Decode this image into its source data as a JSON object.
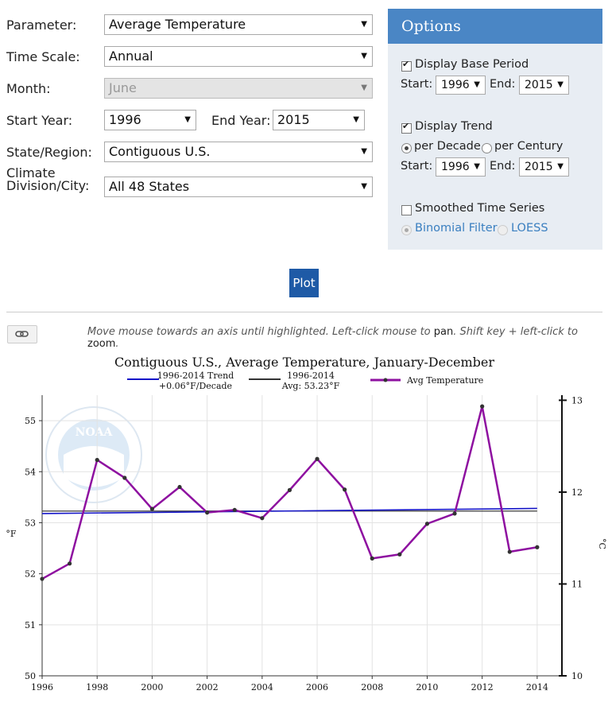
{
  "form": {
    "parameter_label": "Parameter:",
    "parameter_value": "Average Temperature",
    "timescale_label": "Time Scale:",
    "timescale_value": "Annual",
    "month_label": "Month:",
    "month_value": "June",
    "start_year_label": "Start Year:",
    "start_year_value": "1996",
    "end_year_label": "End Year:",
    "end_year_value": "2015",
    "state_label": "State/Region:",
    "state_value": "Contiguous U.S.",
    "division_label_1": "Climate",
    "division_label_2": "Division/City:",
    "division_value": "All 48 States",
    "arrow_icon": "▼"
  },
  "options": {
    "title": "Options",
    "base_period_label": "Display Base Period",
    "start_label": "Start:",
    "end_label": "End:",
    "base_start": "1996",
    "base_end": "2015",
    "trend_label": "Display Trend",
    "per_decade": "per Decade",
    "per_century": "per Century",
    "trend_start": "1996",
    "trend_end": "2015",
    "smoothed_label": "Smoothed Time Series",
    "binomial": "Binomial Filter",
    "loess": "LOESS"
  },
  "plot_button": "Plot",
  "hint": {
    "part1": "Move mouse towards an axis until highlighted. Left-click mouse to ",
    "pan": "pan",
    "part2": ". Shift key + left-click to ",
    "zoom": "zoom",
    "part3": "."
  },
  "colors": {
    "trend": "#1515c8",
    "avg": "#333333",
    "series": "#8e10a0",
    "options_header": "#4a86c5",
    "plot_button": "#1e5aa6"
  },
  "chart_data": {
    "type": "line",
    "title": "Contiguous U.S., Average Temperature, January-December",
    "ylabel": "°F",
    "y2label": "°C",
    "legend": [
      {
        "key": "trend",
        "line1": "1996-2014 Trend",
        "line2": "+0.06°F/Decade"
      },
      {
        "key": "avg",
        "line1": "1996-2014",
        "line2": "Avg: 53.23°F"
      },
      {
        "key": "series",
        "line1": "Avg Temperature"
      }
    ],
    "x": [
      1996,
      1997,
      1998,
      1999,
      2000,
      2001,
      2002,
      2003,
      2004,
      2005,
      2006,
      2007,
      2008,
      2009,
      2010,
      2011,
      2012,
      2013,
      2014
    ],
    "series": [
      {
        "name": "Avg Temperature",
        "values": [
          51.9,
          52.2,
          54.23,
          53.88,
          53.27,
          53.7,
          53.2,
          53.25,
          53.09,
          53.64,
          54.25,
          53.65,
          52.3,
          52.38,
          52.98,
          53.18,
          55.28,
          52.43,
          52.52
        ]
      }
    ],
    "trend": {
      "start": 53.18,
      "end": 53.28,
      "x_range": [
        1996,
        2014
      ]
    },
    "average": 53.23,
    "xlim": [
      1996,
      2014.9
    ],
    "xticks": [
      "1996",
      "1998",
      "2000",
      "2002",
      "2004",
      "2006",
      "2008",
      "2010",
      "2012",
      "2014"
    ],
    "ylim": [
      50,
      55.5
    ],
    "yticks": [
      "50",
      "51",
      "52",
      "53",
      "54",
      "55"
    ],
    "y2ticks": [
      "10",
      "11",
      "12",
      "13"
    ],
    "grid": true,
    "legend_position": "top"
  }
}
